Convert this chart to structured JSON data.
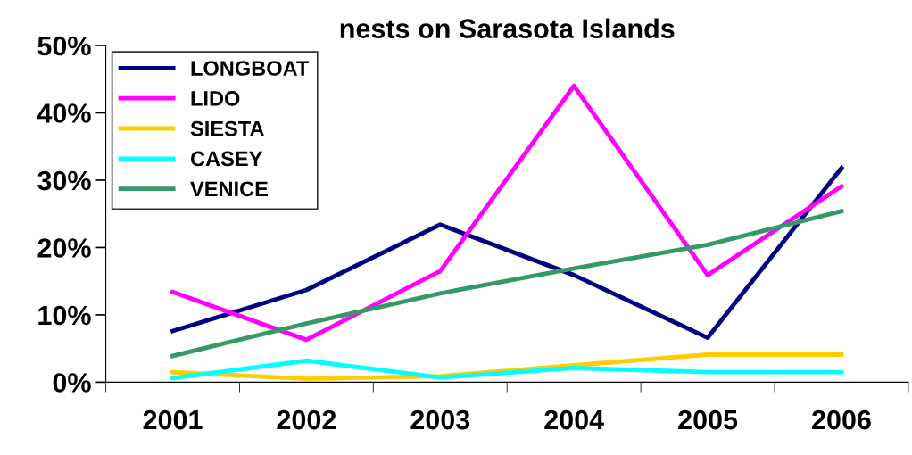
{
  "chart_data": {
    "type": "line",
    "title": "nests on Sarasota Islands",
    "categories": [
      "2001",
      "2002",
      "2003",
      "2004",
      "2005",
      "2006"
    ],
    "series": [
      {
        "name": "LONGBOAT",
        "color": "#000080",
        "values": [
          7.6,
          13.7,
          23.4,
          15.9,
          6.6,
          31.8
        ]
      },
      {
        "name": "LIDO",
        "color": "#ff00ff",
        "values": [
          13.4,
          6.3,
          16.5,
          44.0,
          15.9,
          29.1
        ]
      },
      {
        "name": "SIESTA",
        "color": "#ffcc00",
        "values": [
          1.5,
          0.5,
          0.9,
          2.5,
          4.1,
          4.1
        ]
      },
      {
        "name": "CASEY",
        "color": "#00ffff",
        "values": [
          0.6,
          3.2,
          0.7,
          2.1,
          1.5,
          1.5
        ]
      },
      {
        "name": "VENICE",
        "color": "#339966",
        "values": [
          3.9,
          8.7,
          13.2,
          16.9,
          20.4,
          25.4
        ]
      }
    ],
    "ylim": [
      0,
      50
    ],
    "yticks": [
      {
        "value": 0,
        "label": "0%"
      },
      {
        "value": 10,
        "label": "10%"
      },
      {
        "value": 20,
        "label": "20%"
      },
      {
        "value": 30,
        "label": "30%"
      },
      {
        "value": 40,
        "label": "40%"
      },
      {
        "value": 50,
        "label": "50%"
      }
    ],
    "grid": false,
    "legend": "top left",
    "marker": "none",
    "line_style": "solid"
  }
}
